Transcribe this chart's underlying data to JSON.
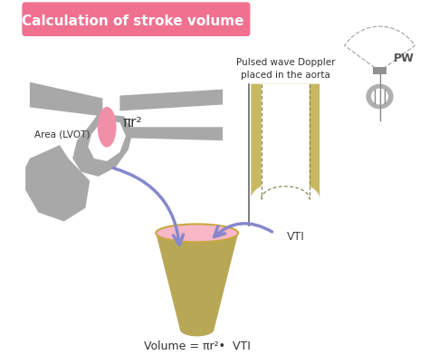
{
  "title": "Calculation of stroke volume",
  "title_bg_top": "#f07090",
  "title_bg_bot": "#e8587a",
  "title_text_color": "white",
  "gray_color": "#a8a8a8",
  "pink_color": "#f090a8",
  "olive_color": "#b8a855",
  "arrow_color": "#8888cc",
  "dark_olive": "#a09040",
  "light_pink": "#f8b8c8",
  "background": "white",
  "vti_label": "VTI",
  "pw_label": "PW",
  "area_label": "Area (LVOT)",
  "pi_r2_label": "πr²",
  "pulsed_wave_label": "Pulsed wave Doppler\nplaced in the aorta",
  "volume_label": "Volume = πr²•  VTI",
  "vti_waveform_color": "#c8b860",
  "vti_dashed_color": "#888855"
}
